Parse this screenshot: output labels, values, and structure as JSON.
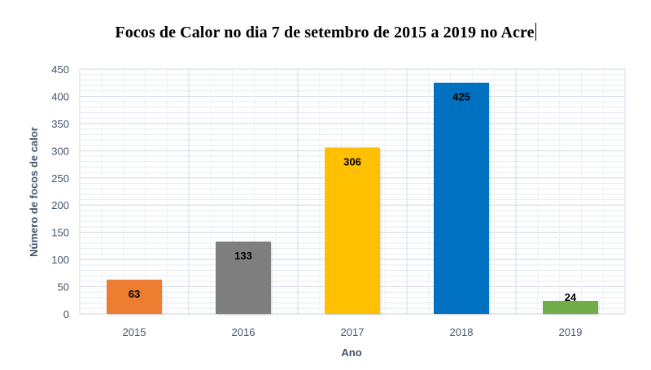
{
  "chart_data": {
    "type": "bar",
    "title": "Focos de Calor no dia 7 de setembro de 2015 a 2019 no Acre",
    "xlabel": "Ano",
    "ylabel": "Número de focos de calor",
    "categories": [
      "2015",
      "2016",
      "2017",
      "2018",
      "2019"
    ],
    "values": [
      63,
      133,
      306,
      425,
      24
    ],
    "data_labels": [
      "63",
      "133",
      "306",
      "425",
      "24"
    ],
    "bar_colors": [
      "#ED7D31",
      "#7F7F7F",
      "#FFC000",
      "#0070C0",
      "#70AD47"
    ],
    "ylim": [
      0,
      450
    ],
    "yticks": [
      0,
      50,
      100,
      150,
      200,
      250,
      300,
      350,
      400,
      450
    ],
    "grid": true,
    "legend": "none"
  }
}
